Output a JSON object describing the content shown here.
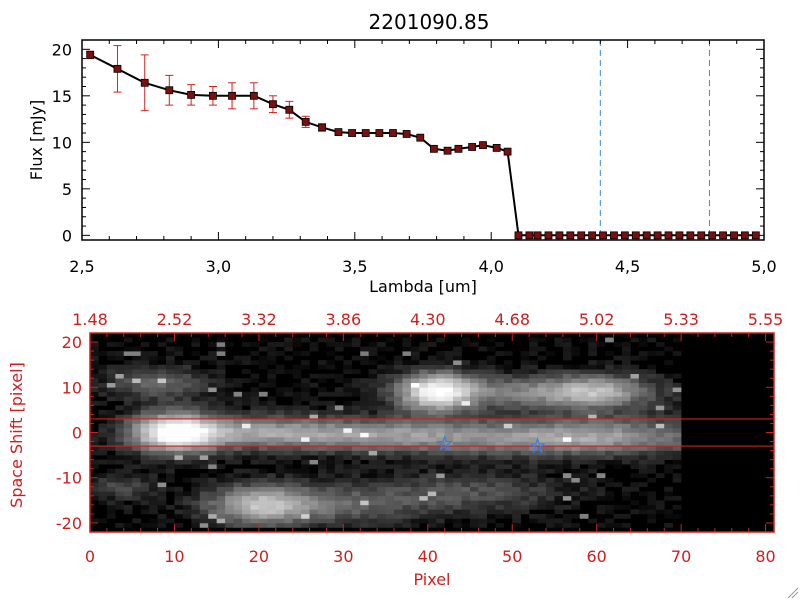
{
  "colors": {
    "spectrum_line": "#000000",
    "marker_fill": "#7a0f0f",
    "errorbar": "#d42020",
    "dashed": "#3b8ed8",
    "red_axis": "#cc2020",
    "star": "#3d7fe0",
    "bg_image": "#000000"
  },
  "chart_data": [
    {
      "type": "line",
      "title": "2201090.85",
      "xlabel": "Lambda [um]",
      "ylabel": "Flux [mJy]",
      "xlim": [
        2.5,
        5.0
      ],
      "ylim": [
        -0.5,
        21.0
      ],
      "xticks": [
        2.5,
        3.0,
        3.5,
        4.0,
        4.5,
        5.0
      ],
      "xtick_labels": [
        "2,5",
        "3,0",
        "3,5",
        "4,0",
        "4,5",
        "5,0"
      ],
      "yticks": [
        0,
        5,
        10,
        15,
        20
      ],
      "ytick_labels": [
        "0",
        "5",
        "10",
        "15",
        "20"
      ],
      "grid": false,
      "vlines": [
        4.4,
        4.8
      ],
      "series": [
        {
          "x": [
            2.53,
            2.63,
            2.73,
            2.82,
            2.9,
            2.98,
            3.05,
            3.13,
            3.2,
            3.26,
            3.32,
            3.38,
            3.44,
            3.49,
            3.54,
            3.59,
            3.64,
            3.69,
            3.74,
            3.79,
            3.84,
            3.88,
            3.93,
            3.97,
            4.02,
            4.06,
            4.1,
            4.14,
            4.17,
            4.21,
            4.25,
            4.29,
            4.33,
            4.37,
            4.41,
            4.45,
            4.49,
            4.53,
            4.57,
            4.61,
            4.65,
            4.69,
            4.73,
            4.77,
            4.81,
            4.85,
            4.89,
            4.93,
            4.97
          ],
          "y": [
            19.4,
            17.9,
            16.4,
            15.6,
            15.1,
            15.0,
            15.0,
            15.0,
            14.1,
            13.5,
            12.2,
            11.6,
            11.1,
            11.0,
            11.0,
            11.0,
            11.0,
            10.9,
            10.5,
            9.3,
            9.1,
            9.3,
            9.5,
            9.7,
            9.4,
            9.0,
            0.0,
            0.0,
            0.0,
            0.0,
            0.0,
            0.0,
            0.0,
            0.0,
            0.0,
            0.0,
            0.0,
            0.0,
            0.0,
            0.0,
            0.0,
            0.0,
            0.0,
            0.0,
            0.0,
            0.0,
            0.0,
            0.0,
            0.0
          ],
          "yerr": [
            0.4,
            2.5,
            3.0,
            1.6,
            1.1,
            1.0,
            1.4,
            1.4,
            0.9,
            0.9,
            0.6,
            0.4,
            0.3,
            0.3,
            0.3,
            0.3,
            0.3,
            0.3,
            0.3,
            0.3,
            0.3,
            0.3,
            0.3,
            0.3,
            0.3,
            0.3,
            0.2,
            0.2,
            0.2,
            0.2,
            0.2,
            0.2,
            0.2,
            0.2,
            0.2,
            0.2,
            0.2,
            0.2,
            0.2,
            0.2,
            0.2,
            0.2,
            0.2,
            0.2,
            0.2,
            0.2,
            0.2,
            0.2,
            0.2
          ]
        }
      ]
    },
    {
      "type": "heatmap",
      "xlabel": "Pixel",
      "ylabel": "Space Shift [pixel]",
      "xlim": [
        0,
        81
      ],
      "ylim": [
        -22,
        22
      ],
      "xticks": [
        0,
        10,
        20,
        30,
        40,
        50,
        60,
        70,
        80
      ],
      "xtick_labels": [
        "0",
        "10",
        "20",
        "30",
        "40",
        "50",
        "60",
        "70",
        "80"
      ],
      "yticks": [
        -20,
        -10,
        0,
        10,
        20
      ],
      "ytick_labels": [
        "-20",
        "-10",
        "0",
        "10",
        "20"
      ],
      "top_axis_tick_labels": [
        "1.48",
        "2.52",
        "3.32",
        "3.86",
        "4.30",
        "4.68",
        "5.02",
        "5.33",
        "5.55"
      ],
      "hlines": [
        3,
        -3
      ],
      "stars": [
        {
          "x": 42,
          "y": -2.5
        },
        {
          "x": 53,
          "y": -3
        }
      ],
      "blobs": [
        {
          "x": 10,
          "y": 0,
          "sx": 3.5,
          "sy": 3,
          "amp": 1.0
        },
        {
          "x": 20,
          "y": 0,
          "sx": 7,
          "sy": 2.5,
          "amp": 0.5
        },
        {
          "x": 35,
          "y": -0.5,
          "sx": 8,
          "sy": 2.5,
          "amp": 0.42
        },
        {
          "x": 55,
          "y": -1.5,
          "sx": 12,
          "sy": 2.5,
          "amp": 0.38
        },
        {
          "x": 41,
          "y": 9,
          "sx": 3,
          "sy": 3,
          "amp": 0.85
        },
        {
          "x": 52,
          "y": 9,
          "sx": 9,
          "sy": 2.5,
          "amp": 0.4
        },
        {
          "x": 60,
          "y": 9,
          "sx": 4,
          "sy": 2.5,
          "amp": 0.45
        },
        {
          "x": 20,
          "y": -16,
          "sx": 4,
          "sy": 3,
          "amp": 0.55
        },
        {
          "x": 28,
          "y": -16,
          "sx": 8,
          "sy": 3,
          "amp": 0.3
        },
        {
          "x": 8,
          "y": 11,
          "sx": 4,
          "sy": 2.5,
          "amp": 0.32
        },
        {
          "x": 45,
          "y": -13,
          "sx": 8,
          "sy": 3,
          "amp": 0.22
        },
        {
          "x": 60,
          "y": 0,
          "sx": 9,
          "sy": 3,
          "amp": 0.25
        },
        {
          "x": 4,
          "y": -12,
          "sx": 3,
          "sy": 2,
          "amp": 0.2
        }
      ],
      "data_extent_x": [
        0,
        70
      ],
      "data_extent_y": [
        -21,
        21
      ]
    }
  ]
}
